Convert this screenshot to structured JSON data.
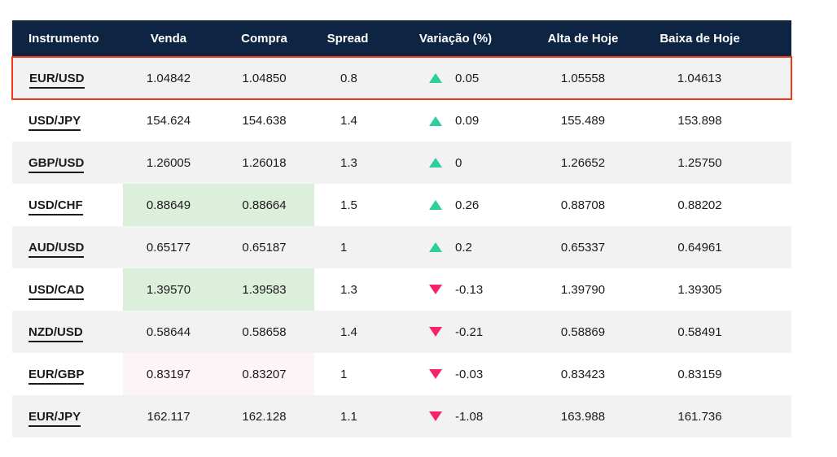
{
  "table": {
    "columns": [
      "Instrumento",
      "Venda",
      "Compra",
      "Spread",
      "Variação (%)",
      "Alta de Hoje",
      "Baixa de Hoje"
    ],
    "rows": [
      {
        "instrument": "EUR/USD",
        "venda": "1.04842",
        "compra": "1.04850",
        "spread": "0.8",
        "direction": "up",
        "variacao": "0.05",
        "alta": "1.05558",
        "baixa": "1.04613",
        "selected": true,
        "flash": "none"
      },
      {
        "instrument": "USD/JPY",
        "venda": "154.624",
        "compra": "154.638",
        "spread": "1.4",
        "direction": "up",
        "variacao": "0.09",
        "alta": "155.489",
        "baixa": "153.898",
        "selected": false,
        "flash": "none"
      },
      {
        "instrument": "GBP/USD",
        "venda": "1.26005",
        "compra": "1.26018",
        "spread": "1.3",
        "direction": "up",
        "variacao": "0",
        "alta": "1.26652",
        "baixa": "1.25750",
        "selected": false,
        "flash": "none"
      },
      {
        "instrument": "USD/CHF",
        "venda": "0.88649",
        "compra": "0.88664",
        "spread": "1.5",
        "direction": "up",
        "variacao": "0.26",
        "alta": "0.88708",
        "baixa": "0.88202",
        "selected": false,
        "flash": "green"
      },
      {
        "instrument": "AUD/USD",
        "venda": "0.65177",
        "compra": "0.65187",
        "spread": "1",
        "direction": "up",
        "variacao": "0.2",
        "alta": "0.65337",
        "baixa": "0.64961",
        "selected": false,
        "flash": "none"
      },
      {
        "instrument": "USD/CAD",
        "venda": "1.39570",
        "compra": "1.39583",
        "spread": "1.3",
        "direction": "down",
        "variacao": "-0.13",
        "alta": "1.39790",
        "baixa": "1.39305",
        "selected": false,
        "flash": "green"
      },
      {
        "instrument": "NZD/USD",
        "venda": "0.58644",
        "compra": "0.58658",
        "spread": "1.4",
        "direction": "down",
        "variacao": "-0.21",
        "alta": "0.58869",
        "baixa": "0.58491",
        "selected": false,
        "flash": "none"
      },
      {
        "instrument": "EUR/GBP",
        "venda": "0.83197",
        "compra": "0.83207",
        "spread": "1",
        "direction": "down",
        "variacao": "-0.03",
        "alta": "0.83423",
        "baixa": "0.83159",
        "selected": false,
        "flash": "pink"
      },
      {
        "instrument": "EUR/JPY",
        "venda": "162.117",
        "compra": "162.128",
        "spread": "1.1",
        "direction": "down",
        "variacao": "-1.08",
        "alta": "163.988",
        "baixa": "161.736",
        "selected": false,
        "flash": "none"
      }
    ]
  },
  "icons": {
    "up": "up-triangle-icon",
    "down": "down-triangle-icon"
  },
  "colors": {
    "header_bg": "#0e2443",
    "header_text": "#ffffff",
    "row_alt": "#f2f2f2",
    "row_bg": "#ffffff",
    "text": "#1b1b1b",
    "up": "#2bce9c",
    "down": "#f8216c",
    "selection": "#ee3b14",
    "flash_green": "#dcefdb",
    "flash_pink": "#fdf4f7"
  }
}
